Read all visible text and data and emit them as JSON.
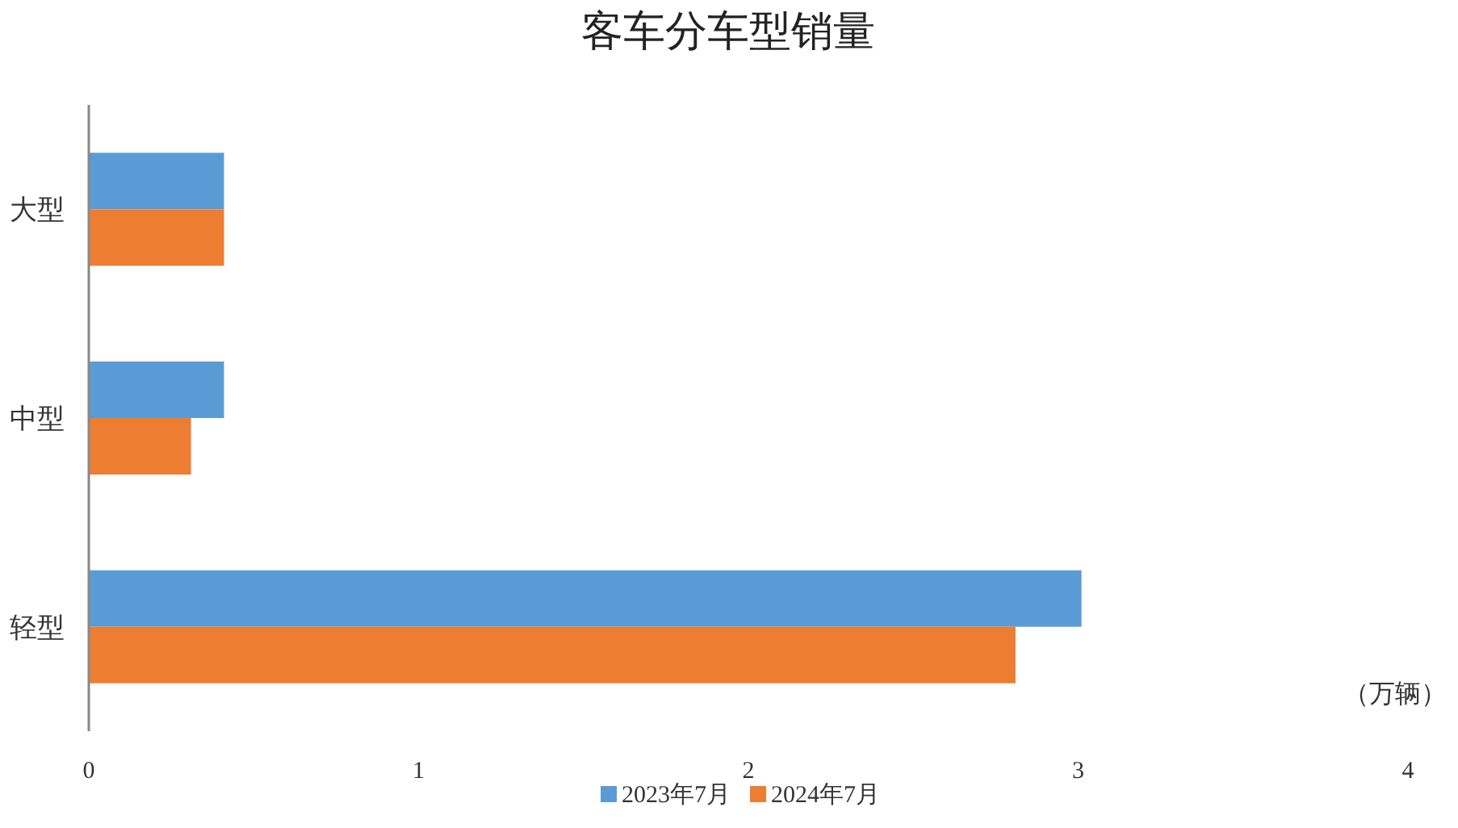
{
  "chart_data": {
    "type": "bar",
    "orientation": "horizontal",
    "title": "客车分车型销量",
    "xlabel": "（万辆）",
    "categories": [
      "大型",
      "中型",
      "轻型"
    ],
    "series": [
      {
        "name": "2023年7月",
        "color": "#5b9bd5",
        "values": [
          0.41,
          0.41,
          3.01
        ]
      },
      {
        "name": "2024年7月",
        "color": "#ed7d31",
        "values": [
          0.41,
          0.31,
          2.81
        ]
      }
    ],
    "xlim": [
      0,
      4
    ],
    "xticks": [
      0,
      1,
      2,
      3,
      4
    ],
    "grid": false,
    "legend": "bottom"
  }
}
